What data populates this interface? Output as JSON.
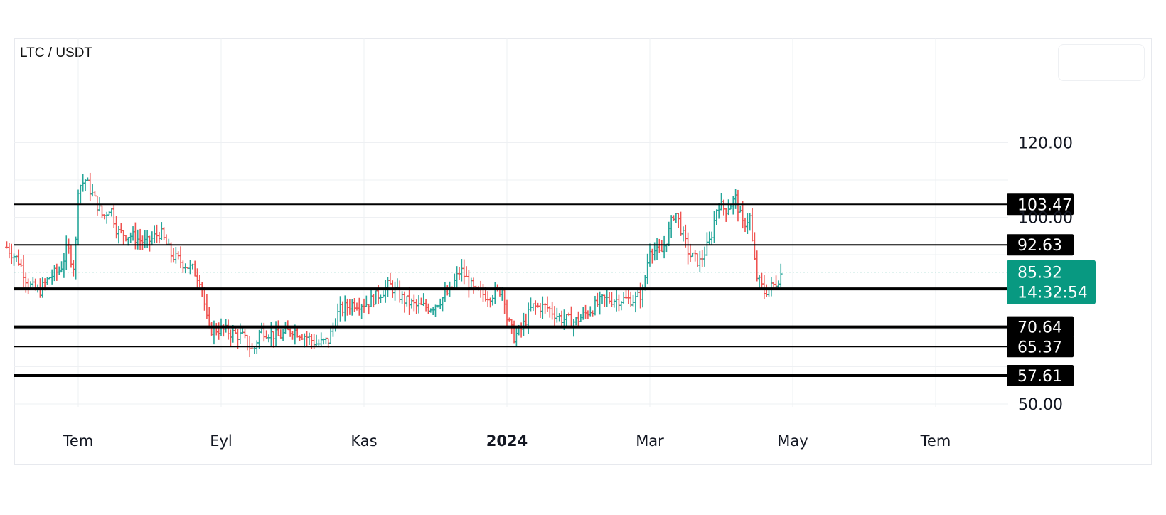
{
  "chart_data": {
    "type": "candlestick",
    "title": "LTC / USDT",
    "y_axis": {
      "min": 40,
      "max": 130,
      "ticks": [
        50,
        100,
        120
      ],
      "tick_labels": [
        "50.00",
        "100.00",
        "120.00"
      ]
    },
    "x_axis": {
      "ticks": [
        {
          "label": "Tem",
          "month": 5,
          "bold": false
        },
        {
          "label": "Eyl",
          "month": 7,
          "bold": false
        },
        {
          "label": "Kas",
          "month": 9,
          "bold": false
        },
        {
          "label": "2024",
          "month": 11,
          "bold": true
        },
        {
          "label": "Mar",
          "month": 13,
          "bold": false
        },
        {
          "label": "May",
          "month": 15,
          "bold": false
        },
        {
          "label": "Tem",
          "month": 17,
          "bold": false
        }
      ]
    },
    "price_path": [
      [
        4.0,
        92
      ],
      [
        4.18,
        88
      ],
      [
        4.3,
        82
      ],
      [
        4.45,
        80
      ],
      [
        4.6,
        84
      ],
      [
        4.75,
        86
      ],
      [
        4.85,
        92
      ],
      [
        4.95,
        86
      ],
      [
        5.0,
        108
      ],
      [
        5.1,
        110
      ],
      [
        5.2,
        106
      ],
      [
        5.35,
        100
      ],
      [
        5.45,
        103
      ],
      [
        5.55,
        96
      ],
      [
        5.75,
        95
      ],
      [
        5.95,
        93
      ],
      [
        6.15,
        96
      ],
      [
        6.3,
        90
      ],
      [
        6.45,
        88
      ],
      [
        6.6,
        86
      ],
      [
        6.72,
        83
      ],
      [
        6.78,
        75
      ],
      [
        6.82,
        70
      ],
      [
        7.0,
        70
      ],
      [
        7.3,
        68
      ],
      [
        7.45,
        64
      ],
      [
        7.55,
        70
      ],
      [
        7.8,
        68
      ],
      [
        8.0,
        70
      ],
      [
        8.2,
        68
      ],
      [
        8.35,
        66
      ],
      [
        8.5,
        67
      ],
      [
        8.65,
        75
      ],
      [
        8.85,
        77
      ],
      [
        9.05,
        77
      ],
      [
        9.25,
        80
      ],
      [
        9.35,
        82
      ],
      [
        9.55,
        78
      ],
      [
        9.75,
        76
      ],
      [
        9.95,
        76
      ],
      [
        10.2,
        80
      ],
      [
        10.35,
        86
      ],
      [
        10.55,
        80
      ],
      [
        10.75,
        79
      ],
      [
        10.95,
        81
      ],
      [
        11.0,
        73
      ],
      [
        11.1,
        68
      ],
      [
        11.2,
        70
      ],
      [
        11.35,
        76
      ],
      [
        11.55,
        76
      ],
      [
        11.75,
        73
      ],
      [
        11.95,
        72
      ],
      [
        12.15,
        75
      ],
      [
        12.35,
        78
      ],
      [
        12.55,
        78
      ],
      [
        12.8,
        78
      ],
      [
        12.9,
        80
      ],
      [
        13.0,
        92
      ],
      [
        13.15,
        90
      ],
      [
        13.25,
        95
      ],
      [
        13.35,
        102
      ],
      [
        13.45,
        96
      ],
      [
        13.55,
        90
      ],
      [
        13.7,
        88
      ],
      [
        13.85,
        94
      ],
      [
        13.95,
        104
      ],
      [
        14.05,
        102
      ],
      [
        14.2,
        105
      ],
      [
        14.3,
        98
      ],
      [
        14.4,
        100
      ],
      [
        14.45,
        90
      ],
      [
        14.5,
        84
      ],
      [
        14.6,
        80
      ],
      [
        14.75,
        82
      ],
      [
        14.85,
        85.32
      ]
    ],
    "price_colors": {
      "up": "#26a69a",
      "down": "#ef5350"
    },
    "horizontal_levels": [
      {
        "value": 103.47,
        "label": "103.47",
        "width": 2
      },
      {
        "value": 92.63,
        "label": "92.63",
        "width": 2
      },
      {
        "value": 80.84,
        "label": "80.84",
        "width": 4
      },
      {
        "value": 70.64,
        "label": "70.64",
        "width": 4
      },
      {
        "value": 65.37,
        "label": "65.37",
        "width": 2
      },
      {
        "value": 57.61,
        "label": "57.61",
        "width": 4
      }
    ],
    "current_price": {
      "value": 85.32,
      "label": "85.32",
      "countdown": "14:32:54",
      "color": "#089981"
    },
    "grid": true
  }
}
